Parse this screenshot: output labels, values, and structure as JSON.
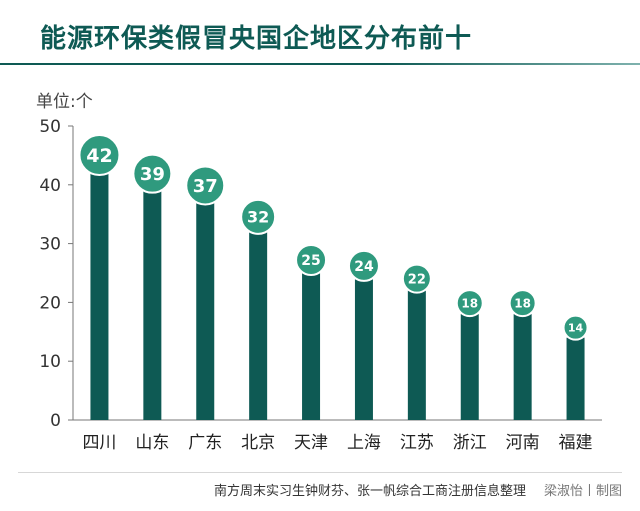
{
  "title": "能源环保类假冒央国企地区分布前十",
  "unit_label": "单位:个",
  "source": "南方周末实习生钟财芬、张一帆综合工商注册信息整理",
  "credit": "梁淑怡丨制图",
  "colors": {
    "bar": "#0e5a54",
    "badge": "#2f9a7e",
    "axis": "#777777",
    "title": "#0e5a54"
  },
  "chart_data": {
    "type": "bar",
    "categories": [
      "四川",
      "山东",
      "广东",
      "北京",
      "天津",
      "上海",
      "江苏",
      "浙江",
      "河南",
      "福建"
    ],
    "values": [
      42,
      39,
      37,
      32,
      25,
      24,
      22,
      18,
      18,
      14
    ],
    "title": "能源环保类假冒央国企地区分布前十",
    "ylabel": "单位:个",
    "ylim": [
      0,
      50
    ],
    "yticks": [
      0,
      10,
      20,
      30,
      40,
      50
    ],
    "grid": false,
    "legend": "none"
  }
}
